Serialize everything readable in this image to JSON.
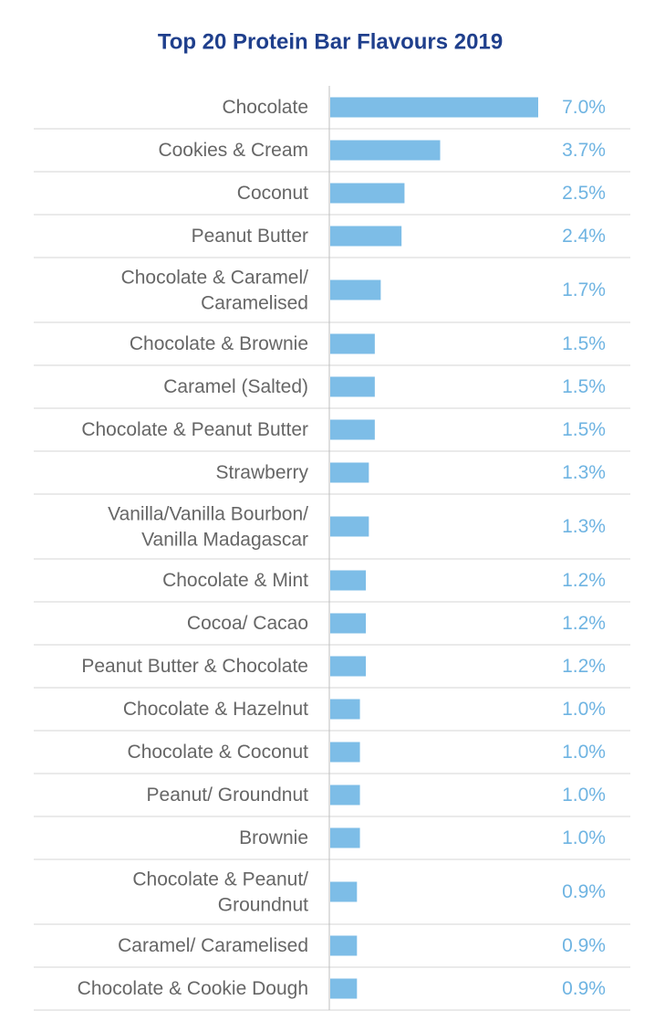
{
  "chart_data": {
    "type": "bar",
    "orientation": "horizontal",
    "title": "Top 20 Protein Bar Flavours 2019",
    "categories": [
      "Chocolate",
      "Cookies & Cream",
      "Coconut",
      "Peanut Butter",
      "Chocolate & Caramel/\nCaramelised",
      "Chocolate & Brownie",
      "Caramel (Salted)",
      "Chocolate & Peanut Butter",
      "Strawberry",
      "Vanilla/Vanilla Bourbon/\nVanilla Madagascar",
      "Chocolate & Mint",
      "Cocoa/ Cacao",
      "Peanut Butter & Chocolate",
      "Chocolate & Hazelnut",
      "Chocolate & Coconut",
      "Peanut/ Groundnut",
      "Brownie",
      "Chocolate & Peanut/\nGroundnut",
      "Caramel/ Caramelised",
      "Chocolate & Cookie Dough"
    ],
    "values": [
      7.0,
      3.7,
      2.5,
      2.4,
      1.7,
      1.5,
      1.5,
      1.5,
      1.3,
      1.3,
      1.2,
      1.2,
      1.2,
      1.0,
      1.0,
      1.0,
      1.0,
      0.9,
      0.9,
      0.9
    ],
    "value_labels": [
      "7.0%",
      "3.7%",
      "2.5%",
      "2.4%",
      "1.7%",
      "1.5%",
      "1.5%",
      "1.5%",
      "1.3%",
      "1.3%",
      "1.2%",
      "1.2%",
      "1.2%",
      "1.0%",
      "1.0%",
      "1.0%",
      "1.0%",
      "0.9%",
      "0.9%",
      "0.9%"
    ],
    "color": "#7dbde7"
  }
}
